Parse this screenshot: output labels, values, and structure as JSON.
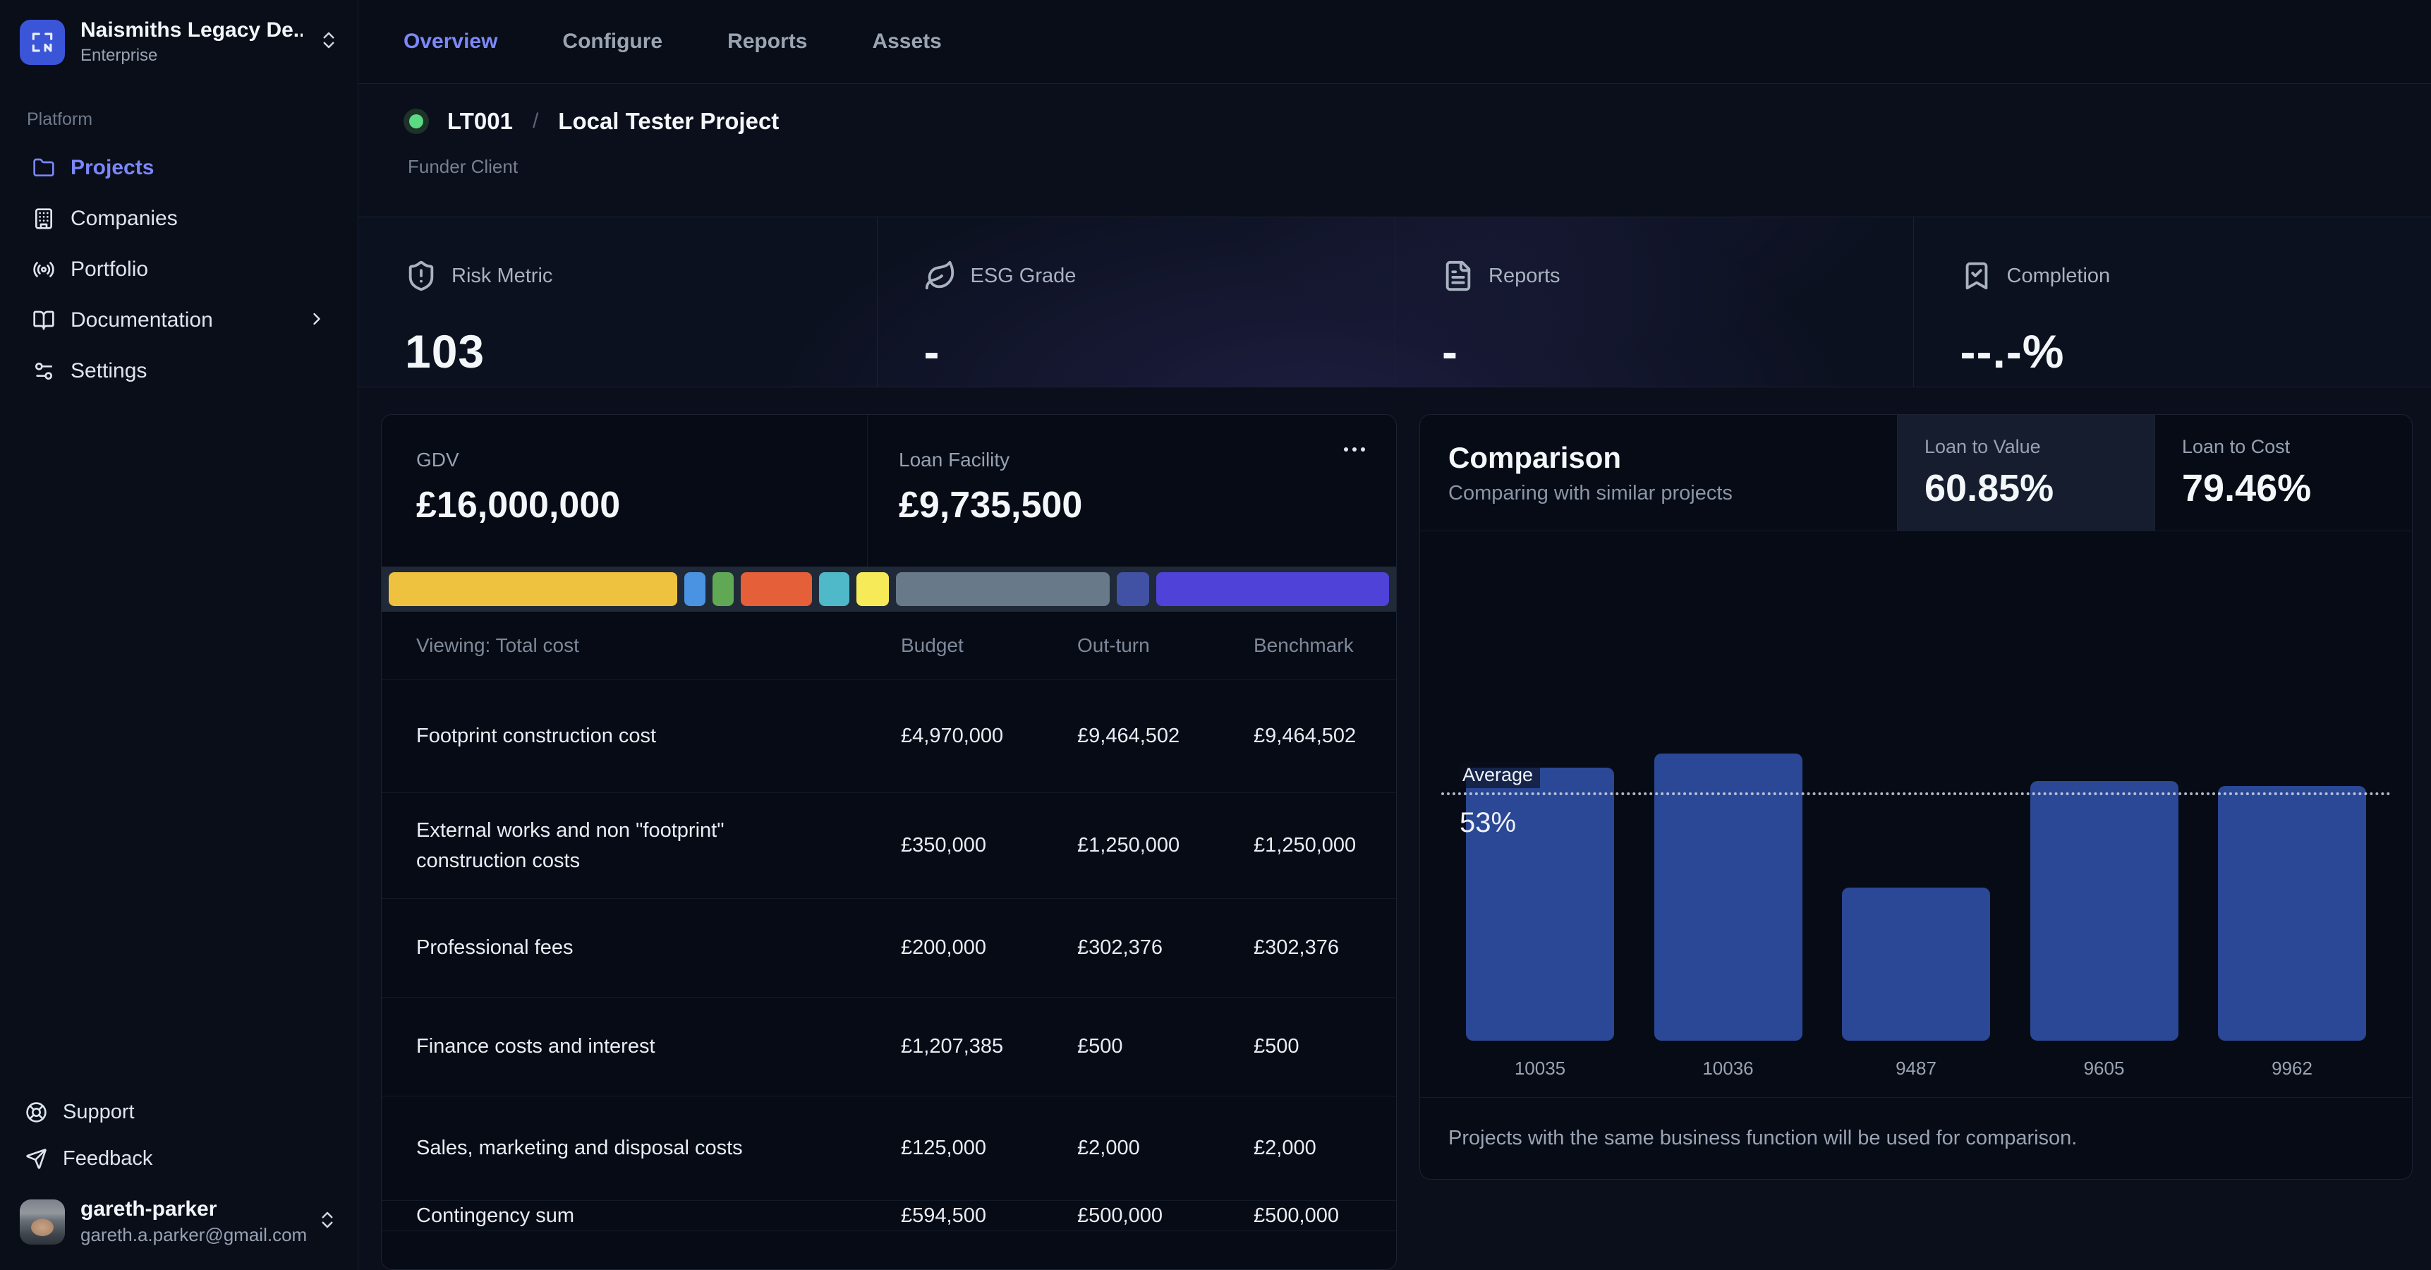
{
  "sidebar": {
    "org": {
      "name": "Naismiths Legacy De...",
      "plan": "Enterprise"
    },
    "section_label": "Platform",
    "items": [
      {
        "label": "Projects",
        "icon": "folder-icon",
        "active": true
      },
      {
        "label": "Companies",
        "icon": "building-icon"
      },
      {
        "label": "Portfolio",
        "icon": "broadcast-icon"
      },
      {
        "label": "Documentation",
        "icon": "book-open-icon",
        "has_submenu": true
      },
      {
        "label": "Settings",
        "icon": "sliders-icon"
      }
    ],
    "footer_items": [
      {
        "label": "Support",
        "icon": "life-buoy-icon"
      },
      {
        "label": "Feedback",
        "icon": "send-icon"
      }
    ],
    "user": {
      "name": "gareth-parker",
      "email": "gareth.a.parker@gmail.com"
    }
  },
  "topnav": {
    "tabs": [
      {
        "label": "Overview",
        "active": true
      },
      {
        "label": "Configure"
      },
      {
        "label": "Reports"
      },
      {
        "label": "Assets"
      }
    ]
  },
  "breadcrumb": {
    "code": "LT001",
    "separator": "/",
    "name": "Local Tester Project",
    "subtitle": "Funder Client",
    "status_color": "#5dd883"
  },
  "metrics": [
    {
      "label": "Risk Metric",
      "value": "103",
      "icon": "shield-alert-icon"
    },
    {
      "label": "ESG Grade",
      "value": "-",
      "icon": "leaf-icon"
    },
    {
      "label": "Reports",
      "value": "-",
      "icon": "file-text-icon"
    },
    {
      "label": "Completion",
      "value": "--.-%",
      "icon": "bookmark-check-icon"
    }
  ],
  "finance_card": {
    "gdv": {
      "label": "GDV",
      "value": "£16,000,000"
    },
    "loan_facility": {
      "label": "Loan Facility",
      "value": "£9,735,500"
    },
    "menu_icon": "ellipsis-icon",
    "segments": [
      {
        "color": "#eec23e",
        "weight": 402
      },
      {
        "color": "#4a93e2",
        "weight": 29
      },
      {
        "color": "#61a854",
        "weight": 30
      },
      {
        "color": "#e55f38",
        "weight": 99
      },
      {
        "color": "#4fb8c9",
        "weight": 42
      },
      {
        "color": "#f7ea59",
        "weight": 46
      },
      {
        "color": "#68798a",
        "weight": 297
      },
      {
        "color": "#4152a5",
        "weight": 46
      },
      {
        "color": "#4f42d8",
        "weight": 324
      }
    ],
    "table": {
      "viewing_label": "Viewing: Total cost",
      "columns": [
        "Budget",
        "Out-turn",
        "Benchmark"
      ],
      "rows": [
        {
          "label": "Footprint construction cost",
          "budget": "£4,970,000",
          "out_turn": "£9,464,502",
          "benchmark": "£9,464,502"
        },
        {
          "label": "External works and non \"footprint\" construction costs",
          "budget": "£350,000",
          "out_turn": "£1,250,000",
          "benchmark": "£1,250,000"
        },
        {
          "label": "Professional fees",
          "budget": "£200,000",
          "out_turn": "£302,376",
          "benchmark": "£302,376"
        },
        {
          "label": "Finance costs and interest",
          "budget": "£1,207,385",
          "out_turn": "£500",
          "benchmark": "£500"
        },
        {
          "label": "Sales, marketing and disposal costs",
          "budget": "£125,000",
          "out_turn": "£2,000",
          "benchmark": "£2,000"
        },
        {
          "label": "Contingency sum",
          "budget": "£594,500",
          "out_turn": "£500,000",
          "benchmark": "£500,000"
        }
      ]
    }
  },
  "comparison": {
    "title": "Comparison",
    "subtitle": "Comparing with similar projects",
    "stats": [
      {
        "label": "Loan to Value",
        "value": "60.85%",
        "highlight": true
      },
      {
        "label": "Loan to Cost",
        "value": "79.46%"
      }
    ],
    "note": "Projects with the same business function will be used for comparison."
  },
  "chart_data": {
    "type": "bar",
    "title": "Comparison",
    "categories": [
      "10035",
      "10036",
      "9487",
      "9605",
      "9962"
    ],
    "values": [
      59,
      62,
      33,
      56,
      55
    ],
    "average": 53,
    "average_label": "Average",
    "average_value_label": "53%",
    "bar_color": "#2a4896",
    "xlabel": "",
    "ylabel": "",
    "ylim": [
      0,
      70
    ],
    "grid": false,
    "legend": false,
    "annotations": [
      "dotted horizontal average line at 53%"
    ]
  }
}
